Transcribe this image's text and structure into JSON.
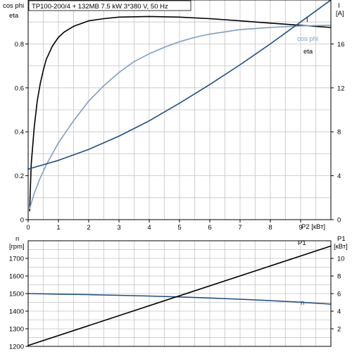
{
  "header": {
    "title": "TP100-200/4 + 132MB   7.5 kW   3*380 V, 50 Hz"
  },
  "colors": {
    "eta": "#000000",
    "cosphi": "#7b9fc4",
    "current": "#1f4f85",
    "n": "#1f4f85",
    "p1": "#000000",
    "grid": "#c4c4c4"
  },
  "chart_data": [
    {
      "type": "line",
      "title": "TP100-200/4 + 132MB   7.5 kW   3*380 V, 50 Hz",
      "xlabel": "P2 [кВт]",
      "ylabel_left": [
        "cos phi",
        "eta"
      ],
      "ylabel_right": [
        "I",
        "[A]"
      ],
      "xlim": [
        0,
        10
      ],
      "ylim_left": [
        0,
        1.0
      ],
      "ylim_right": [
        0,
        20
      ],
      "xticks": [
        0,
        1,
        2,
        3,
        4,
        5,
        6,
        7,
        8,
        9
      ],
      "yticks_left": [
        0,
        0.2,
        0.4,
        0.6,
        0.8
      ],
      "yticks_right": [
        0,
        4,
        8,
        12,
        16
      ],
      "grid": true,
      "series": [
        {
          "name": "eta",
          "axis": "left",
          "color": "#000000",
          "x": [
            0.05,
            0.1,
            0.2,
            0.3,
            0.4,
            0.5,
            0.6,
            0.8,
            1.0,
            1.2,
            1.5,
            2.0,
            2.5,
            3.0,
            4.0,
            5.0,
            6.0,
            7.0,
            8.0,
            9.0,
            9.5,
            10.0
          ],
          "y": [
            0.04,
            0.25,
            0.42,
            0.54,
            0.62,
            0.68,
            0.73,
            0.79,
            0.83,
            0.855,
            0.88,
            0.905,
            0.915,
            0.922,
            0.925,
            0.922,
            0.915,
            0.905,
            0.895,
            0.885,
            0.88,
            0.875
          ]
        },
        {
          "name": "cos phi",
          "axis": "left",
          "color": "#7b9fc4",
          "x": [
            0.05,
            0.2,
            0.4,
            0.6,
            0.8,
            1.0,
            1.5,
            2.0,
            2.5,
            3.0,
            3.5,
            4.0,
            4.5,
            5.0,
            5.5,
            6.0,
            7.0,
            8.0,
            9.0,
            10.0
          ],
          "y": [
            0.05,
            0.12,
            0.19,
            0.25,
            0.3,
            0.35,
            0.45,
            0.54,
            0.61,
            0.67,
            0.72,
            0.755,
            0.785,
            0.81,
            0.83,
            0.845,
            0.865,
            0.875,
            0.882,
            0.885
          ]
        },
        {
          "name": "I",
          "axis": "right",
          "color": "#1f4f85",
          "x": [
            0,
            0.5,
            1.0,
            2.0,
            3.0,
            4.0,
            5.0,
            6.0,
            7.0,
            8.0,
            9.0,
            10.0
          ],
          "y": [
            4.6,
            5.0,
            5.4,
            6.4,
            7.6,
            9.0,
            10.6,
            12.3,
            14.1,
            16.0,
            18.0,
            20.0
          ]
        }
      ],
      "labels": {
        "I": "I",
        "cos phi": "cos phi",
        "eta": "eta"
      }
    },
    {
      "type": "line",
      "xlim": [
        0,
        10
      ],
      "ylim_left": [
        1200,
        1800
      ],
      "ylim_right": [
        0,
        12
      ],
      "ylabel_left": [
        "n",
        "[rpm]"
      ],
      "ylabel_right": [
        "P1",
        "[кВт]"
      ],
      "yticks_left": [
        1200,
        1300,
        1400,
        1500,
        1600,
        1700
      ],
      "yticks_right": [
        2,
        4,
        6,
        8,
        10
      ],
      "grid": true,
      "series": [
        {
          "name": "n",
          "axis": "left",
          "color": "#1f4f85",
          "x": [
            0,
            1,
            2,
            3,
            4,
            5,
            6,
            7,
            8,
            9,
            10
          ],
          "y": [
            1500,
            1497,
            1494,
            1490,
            1486,
            1481,
            1475,
            1468,
            1460,
            1451,
            1440
          ]
        },
        {
          "name": "P1",
          "axis": "right",
          "color": "#000000",
          "x": [
            0,
            10
          ],
          "y": [
            0.1,
            11.4
          ]
        }
      ],
      "labels": {
        "n": "n",
        "P1": "P1"
      }
    }
  ]
}
